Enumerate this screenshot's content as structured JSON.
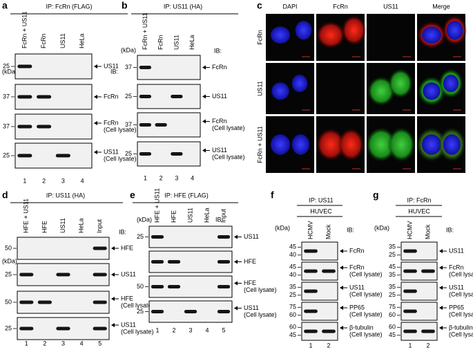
{
  "panels": [
    {
      "letter": "a",
      "title": "IP: FcRn (FLAG)",
      "lanes": [
        "FcRn + US11",
        "FcRn",
        "US11",
        "HeLa"
      ],
      "unit": "(kDa)",
      "ib": "IB:",
      "blots": [
        {
          "mw": [
            25
          ],
          "label": [
            "US11"
          ]
        },
        {
          "mw": [
            37
          ],
          "label": [
            "FcRn"
          ]
        },
        {
          "mw": [
            37
          ],
          "label": [
            "FcRn",
            "(Cell lysate)"
          ]
        },
        {
          "mw": [
            25
          ],
          "label": [
            "US11",
            "(Cell lysate)"
          ]
        }
      ],
      "lane_numbers": [
        1,
        2,
        3,
        4
      ]
    },
    {
      "letter": "b",
      "title": "IP: US11 (HA)",
      "lanes": [
        "FcRn + US11",
        "FcRn",
        "US11",
        "HeLa"
      ],
      "unit": "(kDa)",
      "ib": "IB:",
      "blots": [
        {
          "mw": [
            37
          ],
          "label": [
            "FcRn"
          ]
        },
        {
          "mw": [
            25
          ],
          "label": [
            "US11"
          ]
        },
        {
          "mw": [
            37
          ],
          "label": [
            "FcRn",
            "(Cell lysate)"
          ]
        },
        {
          "mw": [
            25
          ],
          "label": [
            "US11",
            "(Cell lysate)"
          ]
        }
      ],
      "lane_numbers": [
        1,
        2,
        3,
        4
      ]
    },
    {
      "letter": "c",
      "columns": [
        "DAPI",
        "FcRn",
        "US11",
        "Merge"
      ],
      "rows": [
        "FcRn",
        "US11",
        "FcRn + US11"
      ]
    },
    {
      "letter": "d",
      "title": "IP: US11 (HA)",
      "lanes": [
        "HFE + US11",
        "HFE",
        "US11",
        "HeLa",
        "Input"
      ],
      "unit": "(kDa)",
      "ib": "IB:",
      "blots": [
        {
          "mw": [
            50
          ],
          "label": [
            "HFE"
          ]
        },
        {
          "mw": [
            25
          ],
          "label": [
            "US11"
          ]
        },
        {
          "mw": [
            50
          ],
          "label": [
            "HFE",
            "(Cell lysate)"
          ]
        },
        {
          "mw": [
            25
          ],
          "label": [
            "US11",
            "(Cell lysate)"
          ]
        }
      ],
      "lane_numbers": [
        1,
        2,
        3,
        4,
        5
      ]
    },
    {
      "letter": "e",
      "title": "IP: HFE (FLAG)",
      "lanes": [
        "HFE + US11",
        "HFE",
        "US11",
        "HeLa",
        "Input"
      ],
      "unit": "(kDa)",
      "ib": "IB:",
      "blots": [
        {
          "mw": [
            25
          ],
          "label": [
            "US11"
          ]
        },
        {
          "mw": [],
          "label": [
            "HFE"
          ]
        },
        {
          "mw": [
            50
          ],
          "label": [
            "HFE",
            "(Cell lysate)"
          ]
        },
        {
          "mw": [
            25
          ],
          "label": [
            "US11",
            "(Cell lysate)"
          ]
        }
      ],
      "lane_numbers": [
        1,
        2,
        3,
        4,
        5
      ]
    },
    {
      "letter": "f",
      "title": "IP: US11",
      "subtitle": "HUVEC",
      "lanes": [
        "HCMV",
        "Mock"
      ],
      "unit": "(kDa)",
      "ib": "IB:",
      "blots": [
        {
          "mw": [
            45,
            40
          ],
          "label": [
            "FcRn"
          ]
        },
        {
          "mw": [
            45,
            40
          ],
          "label": [
            "FcRn",
            "(Cell lysate)"
          ]
        },
        {
          "mw": [
            35,
            25
          ],
          "label": [
            "US11",
            "(Cell lysate)"
          ]
        },
        {
          "mw": [
            75,
            60
          ],
          "label": [
            "PP65",
            "(Cell lysate)"
          ]
        },
        {
          "mw": [
            60,
            45
          ],
          "label": [
            "β-tubulin",
            "(Cell lysate)"
          ]
        }
      ],
      "lane_numbers": [
        1,
        2
      ]
    },
    {
      "letter": "g",
      "title": "IP: FcRn",
      "subtitle": "HUVEC",
      "lanes": [
        "HCMV",
        "Mock"
      ],
      "unit": "(kDa)",
      "ib": "IB:",
      "blots": [
        {
          "mw": [
            35,
            25
          ],
          "label": [
            "US11"
          ]
        },
        {
          "mw": [
            45,
            35
          ],
          "label": [
            "FcRn",
            "(Cell lysate)"
          ]
        },
        {
          "mw": [
            35,
            25
          ],
          "label": [
            "US11",
            "(Cell lysate)"
          ]
        },
        {
          "mw": [
            75,
            60
          ],
          "label": [
            "PP65",
            "(Cell lysate)"
          ]
        },
        {
          "mw": [
            60,
            45
          ],
          "label": [
            "β-tubulin",
            "(Cell lysate)"
          ]
        }
      ],
      "lane_numbers": [
        1,
        2
      ]
    }
  ]
}
